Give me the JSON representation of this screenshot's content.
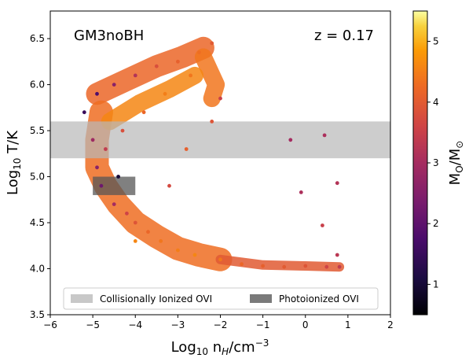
{
  "chart_data": {
    "type": "scatter",
    "title": "GM3noBH",
    "annotation": "z = 0.17",
    "xlabel": "Log₁₀ n_H/cm⁻³",
    "ylabel": "Log₁₀ T/K",
    "xlim": [
      -6,
      2
    ],
    "ylim": [
      3.5,
      6.8
    ],
    "xticks": [
      "−6",
      "−5",
      "−4",
      "−3",
      "−2",
      "−1",
      "0",
      "1",
      "2"
    ],
    "yticks": [
      "3.5",
      "4.0",
      "4.5",
      "5.0",
      "5.5",
      "6.0",
      "6.5"
    ],
    "colorbar": {
      "label": "M_O/M_⊙",
      "range": [
        0.5,
        5.5
      ],
      "ticks": [
        "1",
        "2",
        "3",
        "4",
        "5"
      ],
      "colormap": "inferno"
    },
    "regions": [
      {
        "name": "Collisionally Ionized OVI",
        "x": [
          -6,
          2
        ],
        "y": [
          5.2,
          5.6
        ],
        "color": "#b8b8b8"
      },
      {
        "name": "Photoionized OVI",
        "x": [
          -5,
          -4
        ],
        "y": [
          4.8,
          5.0
        ],
        "color": "#555555"
      }
    ],
    "legend": {
      "position": "bottom",
      "entries": [
        "Collisionally Ionized OVI",
        "Photoionized OVI"
      ]
    },
    "grid": false,
    "series": [
      {
        "points": [
          [
            -4.9,
            5.9,
            1.8
          ],
          [
            -4.5,
            6.0,
            2.6
          ],
          [
            -4.0,
            6.1,
            3.2
          ],
          [
            -3.5,
            6.2,
            3.8
          ],
          [
            -3.0,
            6.25,
            4.1
          ],
          [
            -2.5,
            6.35,
            4.3
          ],
          [
            -2.2,
            6.45,
            4.0
          ],
          [
            -2.7,
            6.1,
            4.4
          ],
          [
            -3.3,
            5.9,
            4.5
          ],
          [
            -3.8,
            5.7,
            4.2
          ],
          [
            -4.3,
            5.5,
            3.8
          ],
          [
            -4.7,
            5.3,
            3.4
          ],
          [
            -4.9,
            5.1,
            2.6
          ],
          [
            -4.8,
            4.9,
            2.2
          ],
          [
            -4.5,
            4.7,
            3.0
          ],
          [
            -4.2,
            4.6,
            3.6
          ],
          [
            -4.0,
            4.5,
            3.9
          ],
          [
            -3.7,
            4.4,
            4.2
          ],
          [
            -3.4,
            4.3,
            4.4
          ],
          [
            -3.0,
            4.2,
            4.5
          ],
          [
            -2.6,
            4.15,
            4.6
          ],
          [
            -2.0,
            4.1,
            4.4
          ],
          [
            -1.5,
            4.05,
            4.2
          ],
          [
            -1.0,
            4.03,
            4.1
          ],
          [
            -0.5,
            4.02,
            4.0
          ],
          [
            0.0,
            4.03,
            3.9
          ],
          [
            0.5,
            4.02,
            3.6
          ],
          [
            0.8,
            4.02,
            3.4
          ],
          [
            -5.2,
            5.7,
            1.5
          ],
          [
            -5.0,
            5.4,
            2.9
          ],
          [
            -4.4,
            5.0,
            1.0
          ],
          [
            -3.2,
            4.9,
            3.7
          ],
          [
            -2.8,
            5.3,
            4.1
          ],
          [
            -2.2,
            5.6,
            3.9
          ],
          [
            -2.0,
            5.85,
            3.5
          ],
          [
            -0.35,
            5.4,
            3.0
          ],
          [
            0.45,
            5.45,
            3.1
          ],
          [
            0.75,
            4.93,
            3.2
          ],
          [
            -0.1,
            4.83,
            3.1
          ],
          [
            0.4,
            4.47,
            3.5
          ],
          [
            0.75,
            4.15,
            3.3
          ],
          [
            -4.0,
            4.3,
            4.6
          ]
        ]
      }
    ]
  }
}
